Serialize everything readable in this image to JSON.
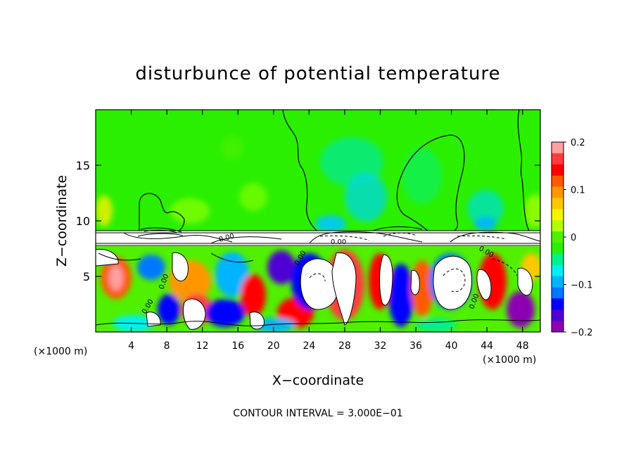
{
  "chart_data": {
    "type": "heatmap",
    "title": "disturbunce of potential temperature",
    "xlabel": "X−coordinate",
    "ylabel": "Z−coordinate",
    "x_unit_label": "(×1000 m)",
    "z_unit_label": "(×1000 m)",
    "x_ticks": [
      4,
      8,
      12,
      16,
      20,
      24,
      28,
      32,
      36,
      40,
      44,
      48
    ],
    "x_tick_labels": [
      "4",
      "8",
      "12",
      "16",
      "20",
      "24",
      "28",
      "32",
      "36",
      "40",
      "44",
      "48"
    ],
    "z_ticks": [
      5,
      10,
      15
    ],
    "z_tick_labels": [
      "5",
      "10",
      "15"
    ],
    "xlim": [
      0,
      50
    ],
    "zlim": [
      0,
      20
    ],
    "colorbar": {
      "range": [
        -0.2,
        0.2
      ],
      "tick_values": [
        0.2,
        0.1,
        0,
        -0.1,
        -0.2
      ],
      "tick_labels": [
        "0.2",
        "0.1",
        "0",
        "−0.1",
        "−0.2"
      ],
      "colors": [
        "#ffa0a0",
        "#ff3c3c",
        "#ff0000",
        "#ff5a00",
        "#ff9600",
        "#ffc800",
        "#f5f500",
        "#b4ff00",
        "#50f000",
        "#2af000",
        "#00f08c",
        "#00f0f0",
        "#00b4ff",
        "#0078ff",
        "#0000ff",
        "#5000d2",
        "#8c00b4"
      ],
      "placement": "right"
    },
    "contour_label": "0.00",
    "footnote": "CONTOUR INTERVAL = 3.000E−01"
  }
}
